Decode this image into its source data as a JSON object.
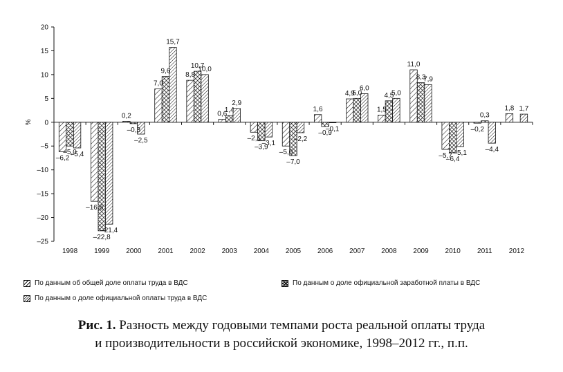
{
  "chart_data": {
    "type": "bar",
    "ylabel": "%",
    "ylim": [
      -25,
      20
    ],
    "yticks": [
      20,
      15,
      10,
      5,
      0,
      -5,
      -10,
      -15,
      -20,
      -25
    ],
    "categories": [
      "1998",
      "1999",
      "2000",
      "2001",
      "2002",
      "2003",
      "2004",
      "2005",
      "2006",
      "2007",
      "2008",
      "2009",
      "2010",
      "2011",
      "2012"
    ],
    "series": [
      {
        "name": "По данным об общей доле оплаты труда в ВДС",
        "pattern": "diag-sparse",
        "values": [
          -6.2,
          -16.6,
          0.2,
          7.0,
          8.8,
          0.6,
          -2.1,
          -5.0,
          1.6,
          4.9,
          1.5,
          11.0,
          -5.7,
          -0.2,
          1.8
        ],
        "labels": [
          "–6,2",
          "–16,6",
          "0,2",
          "7,0",
          "8,8",
          "0,6",
          "–2,1",
          "–5,0",
          "1,6",
          "4,9",
          "1,5",
          "11,0",
          "–5,7",
          "–0,2",
          "1,8"
        ]
      },
      {
        "name": "По данным о доле официальной заработной платы в ВДС",
        "pattern": "cross",
        "values": [
          -5.0,
          -22.8,
          -0.3,
          9.6,
          10.7,
          1.4,
          -3.9,
          -7.0,
          -0.9,
          5.0,
          4.5,
          8.3,
          -6.4,
          0.3,
          null
        ],
        "labels": [
          "–5,0",
          "–22,8",
          "–0,3",
          "9,6",
          "10,7",
          "1,4",
          "–3,9",
          "–7,0",
          "–0,9",
          "5,0",
          "4,5",
          "8,3",
          "–6,4",
          "0,3",
          ""
        ]
      },
      {
        "name": "По данным о доле официальной оплаты труда в ВДС",
        "pattern": "diag-dense",
        "values": [
          -5.4,
          -21.4,
          -2.5,
          15.7,
          10.0,
          2.9,
          -3.1,
          -2.2,
          -0.1,
          6.0,
          5.0,
          7.9,
          -5.1,
          -4.4,
          1.7
        ],
        "labels": [
          "–5,4",
          "–21,4",
          "–2,5",
          "15,7",
          "10,0",
          "2,9",
          "–3,1",
          "–2,2",
          "–0,1",
          "6,0",
          "5,0",
          "7,9",
          "–5,1",
          "–4,4",
          "1,7"
        ]
      }
    ]
  },
  "legend": {
    "items": [
      "По данным об общей доле оплаты труда в ВДС",
      "По данным о доле официальной заработной платы в ВДС",
      "По данным о доле официальной оплаты труда в ВДС"
    ]
  },
  "caption": {
    "prefix": "Рис. 1.",
    "line1": " Разность между годовыми темпами роста реальной оплаты труда",
    "line2": "и производительности в российской экономике, 1998–2012 гг., п.п."
  }
}
